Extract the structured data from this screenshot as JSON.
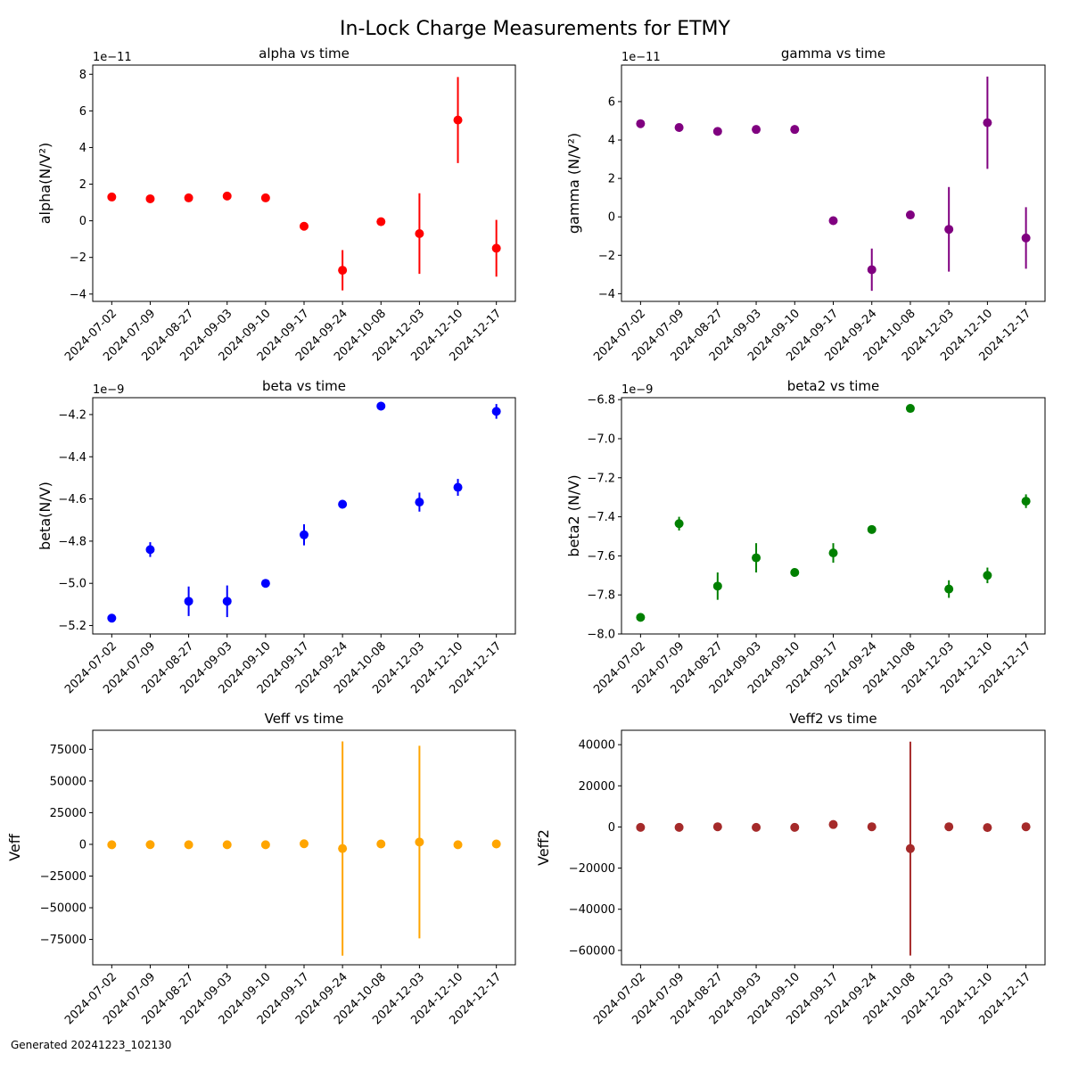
{
  "figure": {
    "title": "In-Lock Charge Measurements for ETMY",
    "footer": "Generated 20241223_102130"
  },
  "chart_data": [
    {
      "type": "scatter",
      "title": "alpha vs time",
      "xlabel": "",
      "ylabel": "alpha(N/V²)",
      "offset_text": "1e−11",
      "categories": [
        "2024-07-02",
        "2024-07-09",
        "2024-08-27",
        "2024-09-03",
        "2024-09-10",
        "2024-09-17",
        "2024-09-24",
        "2024-10-08",
        "2024-12-03",
        "2024-12-10",
        "2024-12-17"
      ],
      "yticks": [
        "−4",
        "−2",
        "0",
        "2",
        "4",
        "6",
        "8"
      ],
      "ytick_values": [
        -4,
        -2,
        0,
        2,
        4,
        6,
        8
      ],
      "ylim": [
        -4.4,
        8.5
      ],
      "color": "#ff0000",
      "values": [
        1.3,
        1.2,
        1.25,
        1.35,
        1.25,
        -0.3,
        -2.7,
        -0.05,
        -0.7,
        5.5,
        -1.5
      ],
      "errors": [
        0.1,
        0.1,
        0.1,
        0.1,
        0.1,
        0.2,
        1.1,
        0.1,
        2.2,
        2.35,
        1.55
      ]
    },
    {
      "type": "scatter",
      "title": "gamma vs time",
      "xlabel": "",
      "ylabel": "gamma (N/V²)",
      "offset_text": "1e−11",
      "categories": [
        "2024-07-02",
        "2024-07-09",
        "2024-08-27",
        "2024-09-03",
        "2024-09-10",
        "2024-09-17",
        "2024-09-24",
        "2024-10-08",
        "2024-12-03",
        "2024-12-10",
        "2024-12-17"
      ],
      "yticks": [
        "−4",
        "−2",
        "0",
        "2",
        "4",
        "6"
      ],
      "ytick_values": [
        -4,
        -2,
        0,
        2,
        4,
        6
      ],
      "ylim": [
        -4.4,
        7.9
      ],
      "color": "#800080",
      "values": [
        4.85,
        4.65,
        4.45,
        4.55,
        4.55,
        -0.2,
        -2.75,
        0.1,
        -0.65,
        4.9,
        -1.1
      ],
      "errors": [
        0.1,
        0.1,
        0.1,
        0.1,
        0.1,
        0.2,
        1.1,
        0.1,
        2.2,
        2.4,
        1.6
      ]
    },
    {
      "type": "scatter",
      "title": "beta vs time",
      "xlabel": "",
      "ylabel": "beta(N/V)",
      "offset_text": "1e−9",
      "categories": [
        "2024-07-02",
        "2024-07-09",
        "2024-08-27",
        "2024-09-03",
        "2024-09-10",
        "2024-09-17",
        "2024-09-24",
        "2024-10-08",
        "2024-12-03",
        "2024-12-10",
        "2024-12-17"
      ],
      "yticks": [
        "−5.2",
        "−5.0",
        "−4.8",
        "−4.6",
        "−4.4",
        "−4.2"
      ],
      "ytick_values": [
        -5.2,
        -5.0,
        -4.8,
        -4.6,
        -4.4,
        -4.2
      ],
      "ylim": [
        -5.24,
        -4.12
      ],
      "color": "#0000ff",
      "values": [
        -5.165,
        -4.84,
        -5.085,
        -5.085,
        -5.0,
        -4.77,
        -4.625,
        -4.16,
        -4.615,
        -4.545,
        -4.185
      ],
      "errors": [
        0.02,
        0.035,
        0.07,
        0.075,
        0.02,
        0.05,
        0.02,
        0.02,
        0.045,
        0.04,
        0.035
      ]
    },
    {
      "type": "scatter",
      "title": "beta2 vs time",
      "xlabel": "",
      "ylabel": "beta2 (N/V)",
      "offset_text": "1e−9",
      "categories": [
        "2024-07-02",
        "2024-07-09",
        "2024-08-27",
        "2024-09-03",
        "2024-09-10",
        "2024-09-17",
        "2024-09-24",
        "2024-10-08",
        "2024-12-03",
        "2024-12-10",
        "2024-12-17"
      ],
      "yticks": [
        "−8.0",
        "−7.8",
        "−7.6",
        "−7.4",
        "−7.2",
        "−7.0",
        "−6.8"
      ],
      "ytick_values": [
        -8.0,
        -7.8,
        -7.6,
        -7.4,
        -7.2,
        -7.0,
        -6.8
      ],
      "ylim": [
        -8.0,
        -6.79
      ],
      "color": "#008000",
      "values": [
        -7.915,
        -7.435,
        -7.755,
        -7.61,
        -7.685,
        -7.585,
        -7.465,
        -6.845,
        -7.77,
        -7.7,
        -7.32
      ],
      "errors": [
        0.02,
        0.035,
        0.07,
        0.075,
        0.02,
        0.05,
        0.02,
        0.02,
        0.045,
        0.04,
        0.035
      ]
    },
    {
      "type": "scatter",
      "title": "Veff vs time",
      "xlabel": "",
      "ylabel": "Veff",
      "offset_text": "",
      "categories": [
        "2024-07-02",
        "2024-07-09",
        "2024-08-27",
        "2024-09-03",
        "2024-09-10",
        "2024-09-17",
        "2024-09-24",
        "2024-10-08",
        "2024-12-03",
        "2024-12-10",
        "2024-12-17"
      ],
      "yticks": [
        "−75000",
        "−50000",
        "−25000",
        "0",
        "25000",
        "50000",
        "75000"
      ],
      "ytick_values": [
        -75000,
        -50000,
        -25000,
        0,
        25000,
        50000,
        75000
      ],
      "ylim": [
        -95000,
        90000
      ],
      "color": "#ffa500",
      "values": [
        -300,
        -200,
        -300,
        -300,
        -300,
        500,
        -3300,
        300,
        1800,
        -300,
        300
      ],
      "errors": [
        100,
        100,
        100,
        100,
        100,
        200,
        84500,
        200,
        76000,
        100,
        200
      ]
    },
    {
      "type": "scatter",
      "title": "Veff2 vs time",
      "xlabel": "",
      "ylabel": "Veff2",
      "offset_text": "",
      "categories": [
        "2024-07-02",
        "2024-07-09",
        "2024-08-27",
        "2024-09-03",
        "2024-09-10",
        "2024-09-17",
        "2024-09-24",
        "2024-10-08",
        "2024-12-03",
        "2024-12-10",
        "2024-12-17"
      ],
      "yticks": [
        "−60000",
        "−40000",
        "−20000",
        "0",
        "20000",
        "40000"
      ],
      "ytick_values": [
        -60000,
        -40000,
        -20000,
        0,
        20000,
        40000
      ],
      "ylim": [
        -67000,
        47000
      ],
      "color": "#a52a2a",
      "values": [
        -200,
        -200,
        100,
        -200,
        -200,
        1200,
        100,
        -10500,
        100,
        -300,
        100
      ],
      "errors": [
        100,
        100,
        100,
        100,
        100,
        200,
        100,
        52000,
        100,
        100,
        100
      ]
    }
  ]
}
